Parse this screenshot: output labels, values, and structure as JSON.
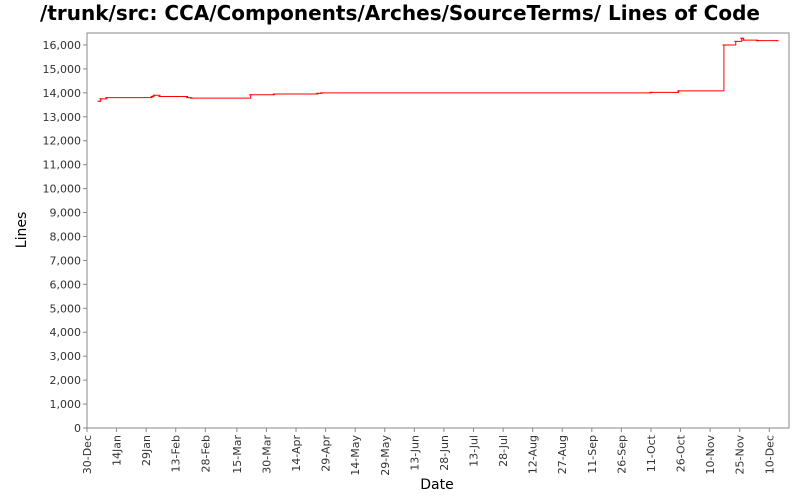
{
  "chart_data": {
    "type": "line",
    "title": "/trunk/src: CCA/Components/Arches/SourceTerms/ Lines of Code",
    "xlabel": "Date",
    "ylabel": "Lines",
    "ylim": [
      0,
      16500
    ],
    "yticks": [
      0,
      1000,
      2000,
      3000,
      4000,
      5000,
      6000,
      7000,
      8000,
      9000,
      10000,
      11000,
      12000,
      13000,
      14000,
      15000,
      16000
    ],
    "ytick_labels": [
      "0",
      "1,000",
      "2,000",
      "3,000",
      "4,000",
      "5,000",
      "6,000",
      "7,000",
      "8,000",
      "9,000",
      "10,000",
      "11,000",
      "12,000",
      "13,000",
      "14,000",
      "15,000",
      "16,000"
    ],
    "xlim": [
      "2007-12-30",
      "2008-12-20"
    ],
    "xticks": [
      "2007-12-30",
      "2008-01-14",
      "2008-01-29",
      "2008-02-13",
      "2008-02-28",
      "2008-03-15",
      "2008-03-30",
      "2008-04-14",
      "2008-04-29",
      "2008-05-14",
      "2008-05-29",
      "2008-06-13",
      "2008-06-28",
      "2008-07-13",
      "2008-07-28",
      "2008-08-12",
      "2008-08-27",
      "2008-09-11",
      "2008-09-26",
      "2008-10-11",
      "2008-10-26",
      "2008-11-10",
      "2008-11-25",
      "2008-12-10"
    ],
    "xtick_labels": [
      "30-Dec",
      "14Jan",
      "29Jan",
      "13-Feb",
      "28-Feb",
      "15-Mar",
      "30-Mar",
      "14-Apr",
      "29-Apr",
      "14-May",
      "29-May",
      "13-Jun",
      "28-Jun",
      "13-Jul",
      "28-Jul",
      "12-Aug",
      "27-Aug",
      "11-Sep",
      "26-Sep",
      "11-Oct",
      "26-Oct",
      "10-Nov",
      "25-Nov",
      "10-Dec"
    ],
    "grid": false,
    "series": [
      {
        "color": "#ff0000",
        "step": true,
        "points": [
          [
            "2008-01-05",
            13650
          ],
          [
            "2008-01-06",
            13750
          ],
          [
            "2008-01-09",
            13800
          ],
          [
            "2008-02-01",
            13850
          ],
          [
            "2008-02-02",
            13900
          ],
          [
            "2008-02-05",
            13850
          ],
          [
            "2008-02-19",
            13800
          ],
          [
            "2008-02-21",
            13780
          ],
          [
            "2008-03-22",
            13920
          ],
          [
            "2008-04-03",
            13950
          ],
          [
            "2008-04-25",
            13980
          ],
          [
            "2008-04-27",
            14000
          ],
          [
            "2008-10-11",
            14020
          ],
          [
            "2008-10-25",
            14080
          ],
          [
            "2008-11-17",
            16000
          ],
          [
            "2008-11-23",
            16150
          ],
          [
            "2008-11-26",
            16280
          ],
          [
            "2008-11-27",
            16200
          ],
          [
            "2008-12-04",
            16180
          ],
          [
            "2008-12-14",
            16180
          ]
        ]
      }
    ]
  }
}
